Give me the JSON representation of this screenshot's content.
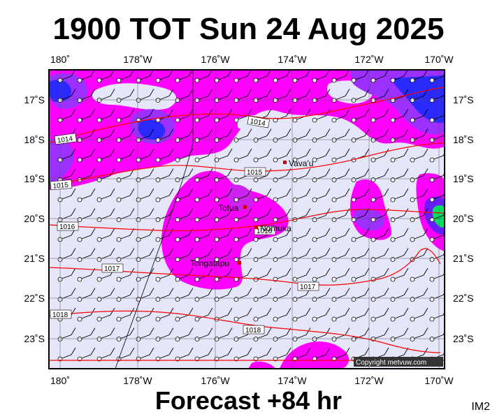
{
  "title": "1900 TOT Sun 24 Aug 2025",
  "footer": "Forecast +84 hr",
  "image_code": "IM2",
  "copyright": "Copyright metvuw.com",
  "colors": {
    "background": "#e6e6fa",
    "rain_light": "#ff00ff",
    "rain_medium": "#cc22ee",
    "rain_heavy": "#6a1cff",
    "rain_very_heavy": "#2a2aff",
    "rain_extreme": "#00e060",
    "isobar": "#ff0000",
    "place_marker": "#cc0000"
  },
  "axes": {
    "lon_labels": [
      "180˚",
      "178˚W",
      "176˚W",
      "174˚W",
      "172˚W",
      "170˚W"
    ],
    "lat_labels": [
      "17˚S",
      "18˚S",
      "19˚S",
      "20˚S",
      "21˚S",
      "22˚S",
      "23˚S"
    ]
  },
  "isobar_labels": [
    "1014",
    "1014",
    "1015",
    "1015",
    "1016",
    "1016",
    "1017",
    "1017",
    "1018",
    "1018"
  ],
  "places": [
    {
      "name": "Vava'u"
    },
    {
      "name": "Tofua"
    },
    {
      "name": "Nomuka"
    },
    {
      "name": "Tongatapu"
    }
  ]
}
